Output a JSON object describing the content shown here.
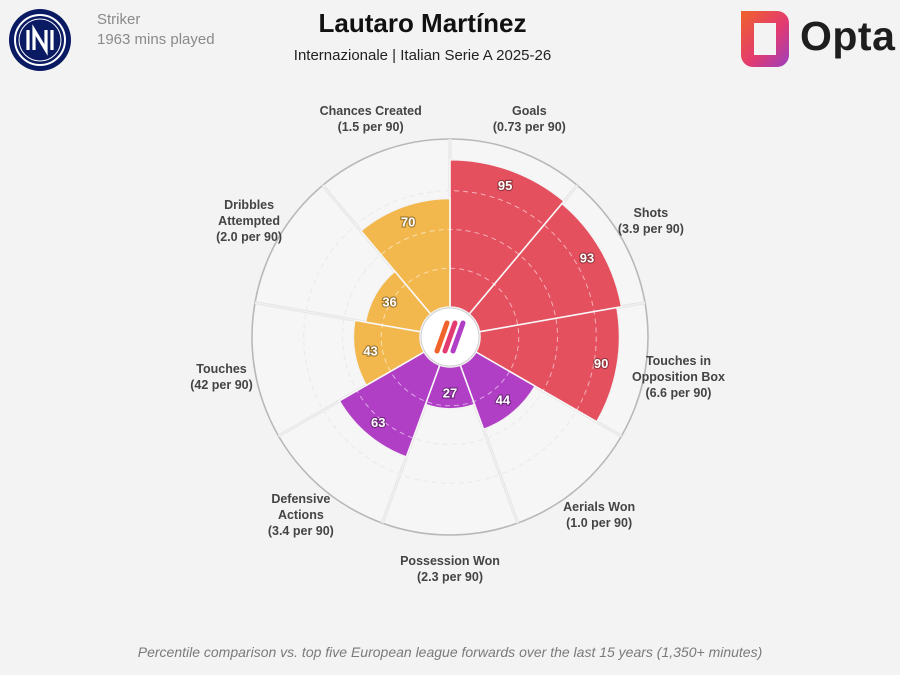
{
  "header": {
    "title": "Lautaro Martínez",
    "subtitle": "Internazionale | Italian Serie A 2025-26",
    "position": "Striker",
    "minutes": "1963 mins played",
    "brand": "Opta"
  },
  "chart_data": {
    "type": "polar-bar",
    "max": 100,
    "categories": [
      {
        "name": [
          "Goals"
        ],
        "per90": "(0.73 per 90)",
        "value": 95,
        "group": "attacking"
      },
      {
        "name": [
          "Shots"
        ],
        "per90": "(3.9 per 90)",
        "value": 93,
        "group": "attacking"
      },
      {
        "name": [
          "Touches in",
          "Opposition Box"
        ],
        "per90": "(6.6 per 90)",
        "value": 90,
        "group": "attacking"
      },
      {
        "name": [
          "Aerials Won"
        ],
        "per90": "(1.0 per 90)",
        "value": 44,
        "group": "defending"
      },
      {
        "name": [
          "Possession Won"
        ],
        "per90": "(2.3 per 90)",
        "value": 27,
        "group": "defending"
      },
      {
        "name": [
          "Defensive",
          "Actions"
        ],
        "per90": "(3.4 per 90)",
        "value": 63,
        "group": "defending"
      },
      {
        "name": [
          "Touches"
        ],
        "per90": "(42 per 90)",
        "value": 43,
        "group": "possession"
      },
      {
        "name": [
          "Dribbles",
          "Attempted"
        ],
        "per90": "(2.0 per 90)",
        "value": 36,
        "group": "possession"
      },
      {
        "name": [
          "Chances Created"
        ],
        "per90": "(1.5 per 90)",
        "value": 70,
        "group": "possession"
      }
    ],
    "colors": {
      "attacking": "#e5505f",
      "defending": "#b13fc6",
      "possession": "#f2b84e"
    },
    "grid": true
  },
  "footnote": "Percentile comparison vs. top five European league forwards over the last 15 years (1,350+ minutes)"
}
